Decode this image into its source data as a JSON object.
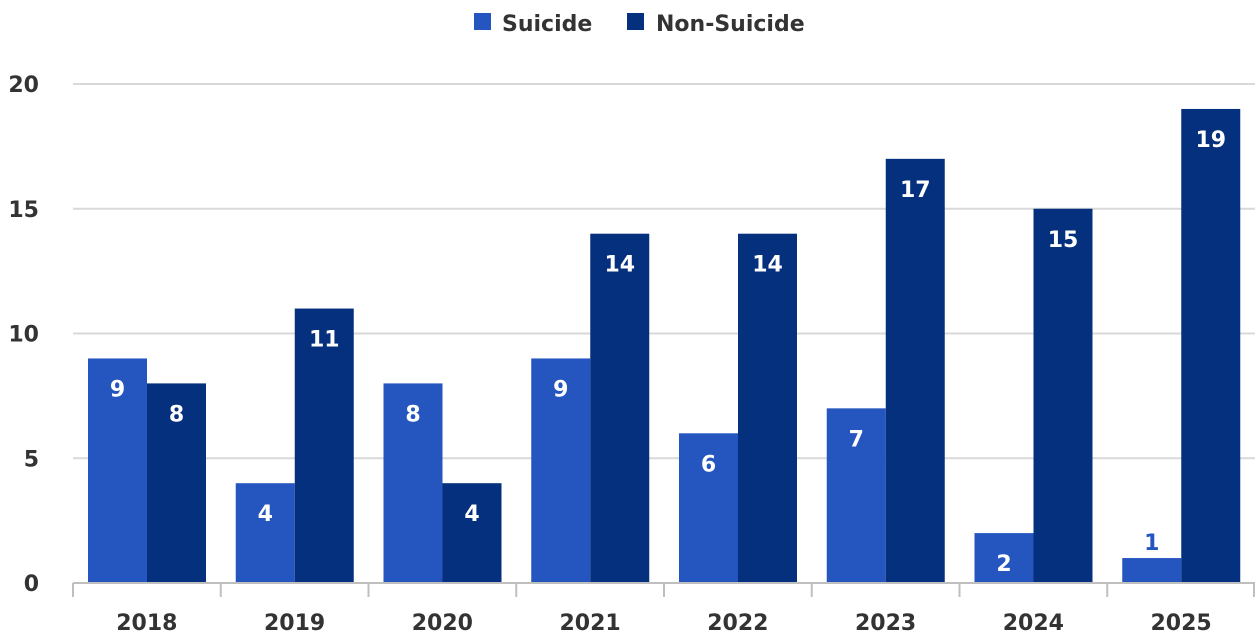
{
  "colors": {
    "suicide": "#2555BE",
    "non_suicide": "#05307D",
    "grid": "#D9D9D9",
    "axis": "#BFBFBF",
    "label_inside": "#FFFFFF"
  },
  "chart_data": {
    "type": "bar",
    "categories": [
      "2018",
      "2019",
      "2020",
      "2021",
      "2022",
      "2023",
      "2024",
      "2025"
    ],
    "series": [
      {
        "name": "Suicide",
        "values": [
          9,
          4,
          8,
          9,
          6,
          7,
          2,
          1
        ]
      },
      {
        "name": "Non-Suicide",
        "values": [
          8,
          11,
          4,
          14,
          14,
          17,
          15,
          19
        ]
      }
    ],
    "title": "",
    "xlabel": "",
    "ylabel": "",
    "ylim": [
      0,
      20
    ],
    "yticks": [
      "0",
      "5",
      "10",
      "15",
      "20"
    ],
    "grid": true,
    "legend_position": "top-center",
    "data_labels": true
  }
}
